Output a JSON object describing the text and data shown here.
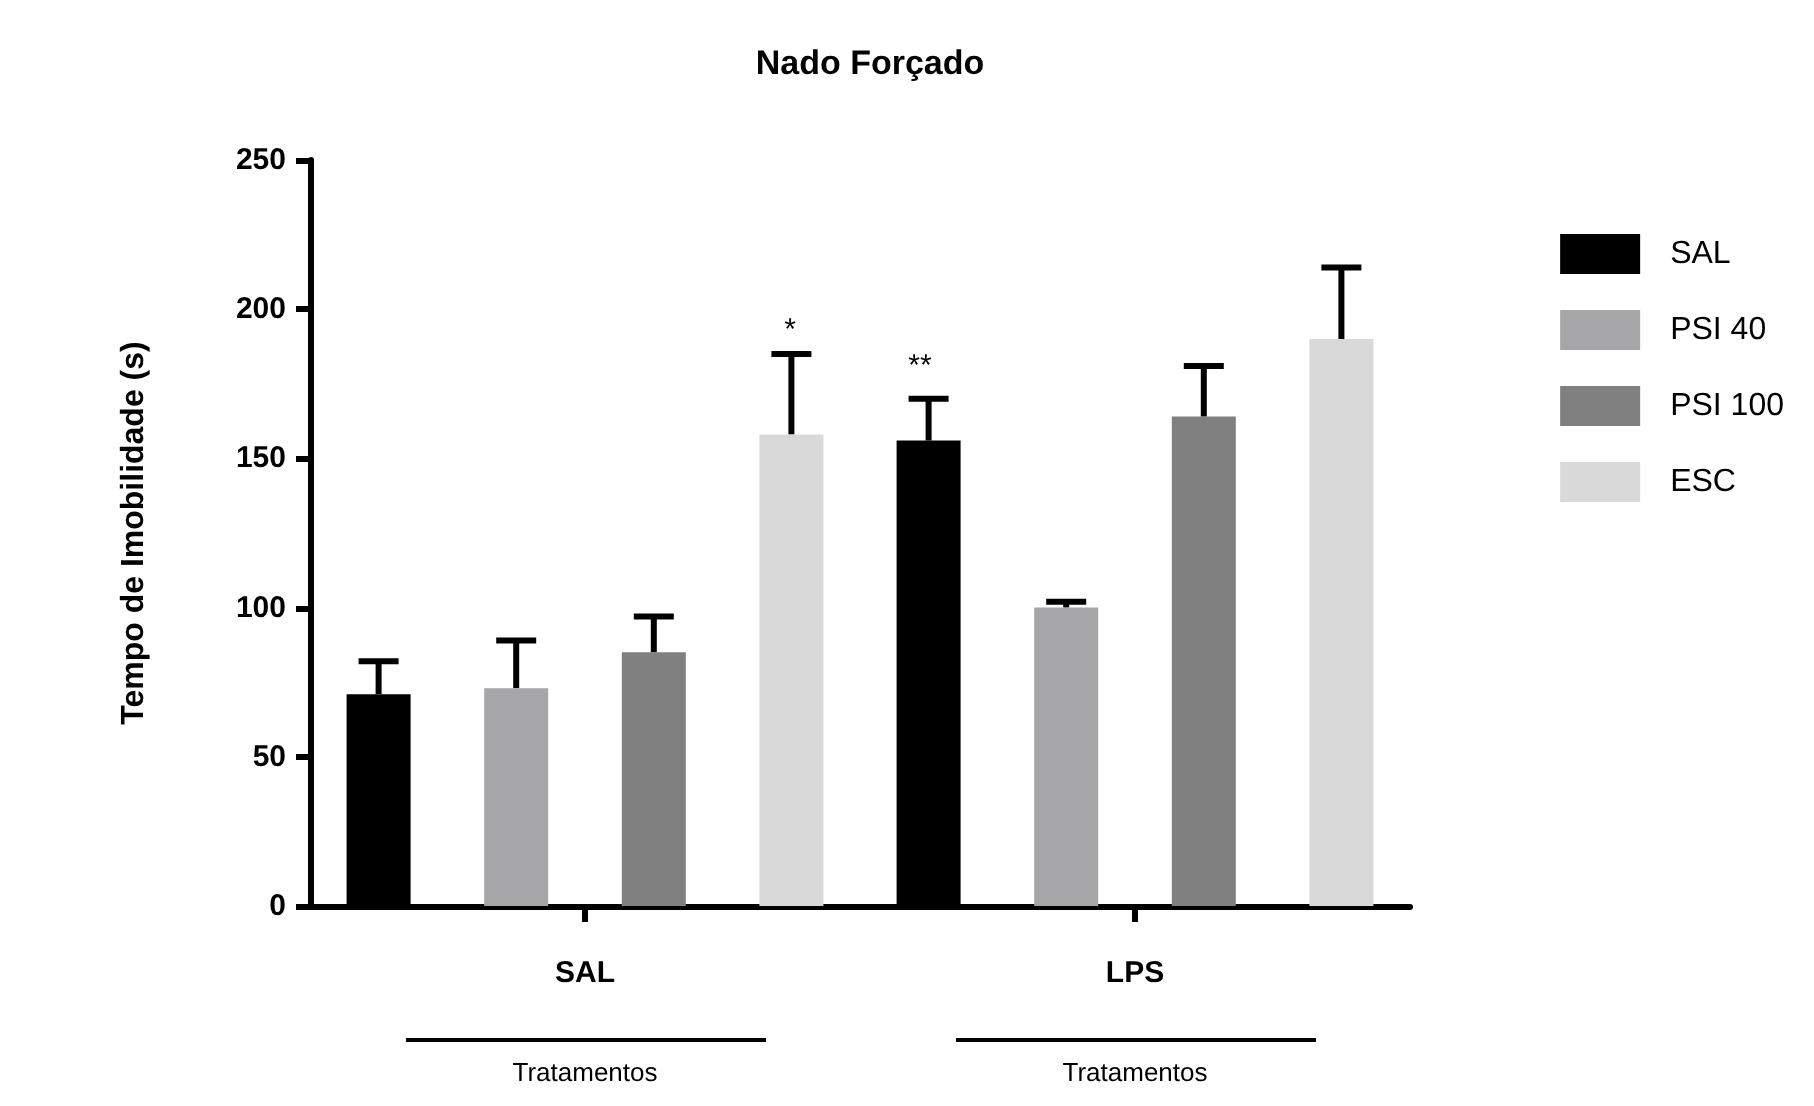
{
  "chart_data": {
    "type": "bar",
    "title": "Nado Forçado",
    "ylabel": "Tempo de Imobilidade (s)",
    "categories": [
      "SAL",
      "LPS"
    ],
    "series": [
      {
        "name": "SAL",
        "color": "#000000",
        "values": [
          71,
          156
        ],
        "errors": [
          [
            71,
            82
          ],
          [
            156,
            170
          ]
        ]
      },
      {
        "name": "PSI 40",
        "color": "#a6a6a8",
        "values": [
          73,
          100
        ],
        "errors": [
          [
            73,
            89
          ],
          [
            100,
            102
          ]
        ]
      },
      {
        "name": "PSI 100",
        "color": "#808080",
        "values": [
          85,
          164
        ],
        "errors": [
          [
            85,
            97
          ],
          [
            164,
            181
          ]
        ]
      },
      {
        "name": "ESC",
        "color": "#d9d9d9",
        "values": [
          158,
          190
        ],
        "errors": [
          [
            158,
            185
          ],
          [
            190,
            214
          ]
        ]
      }
    ],
    "ylim": [
      0,
      250
    ],
    "yticks": [
      0,
      50,
      100,
      150,
      200,
      250
    ],
    "grid": false,
    "legend": "top right",
    "annotations": [
      "*",
      "**",
      "Tratamentos",
      "Tratamentos"
    ]
  }
}
